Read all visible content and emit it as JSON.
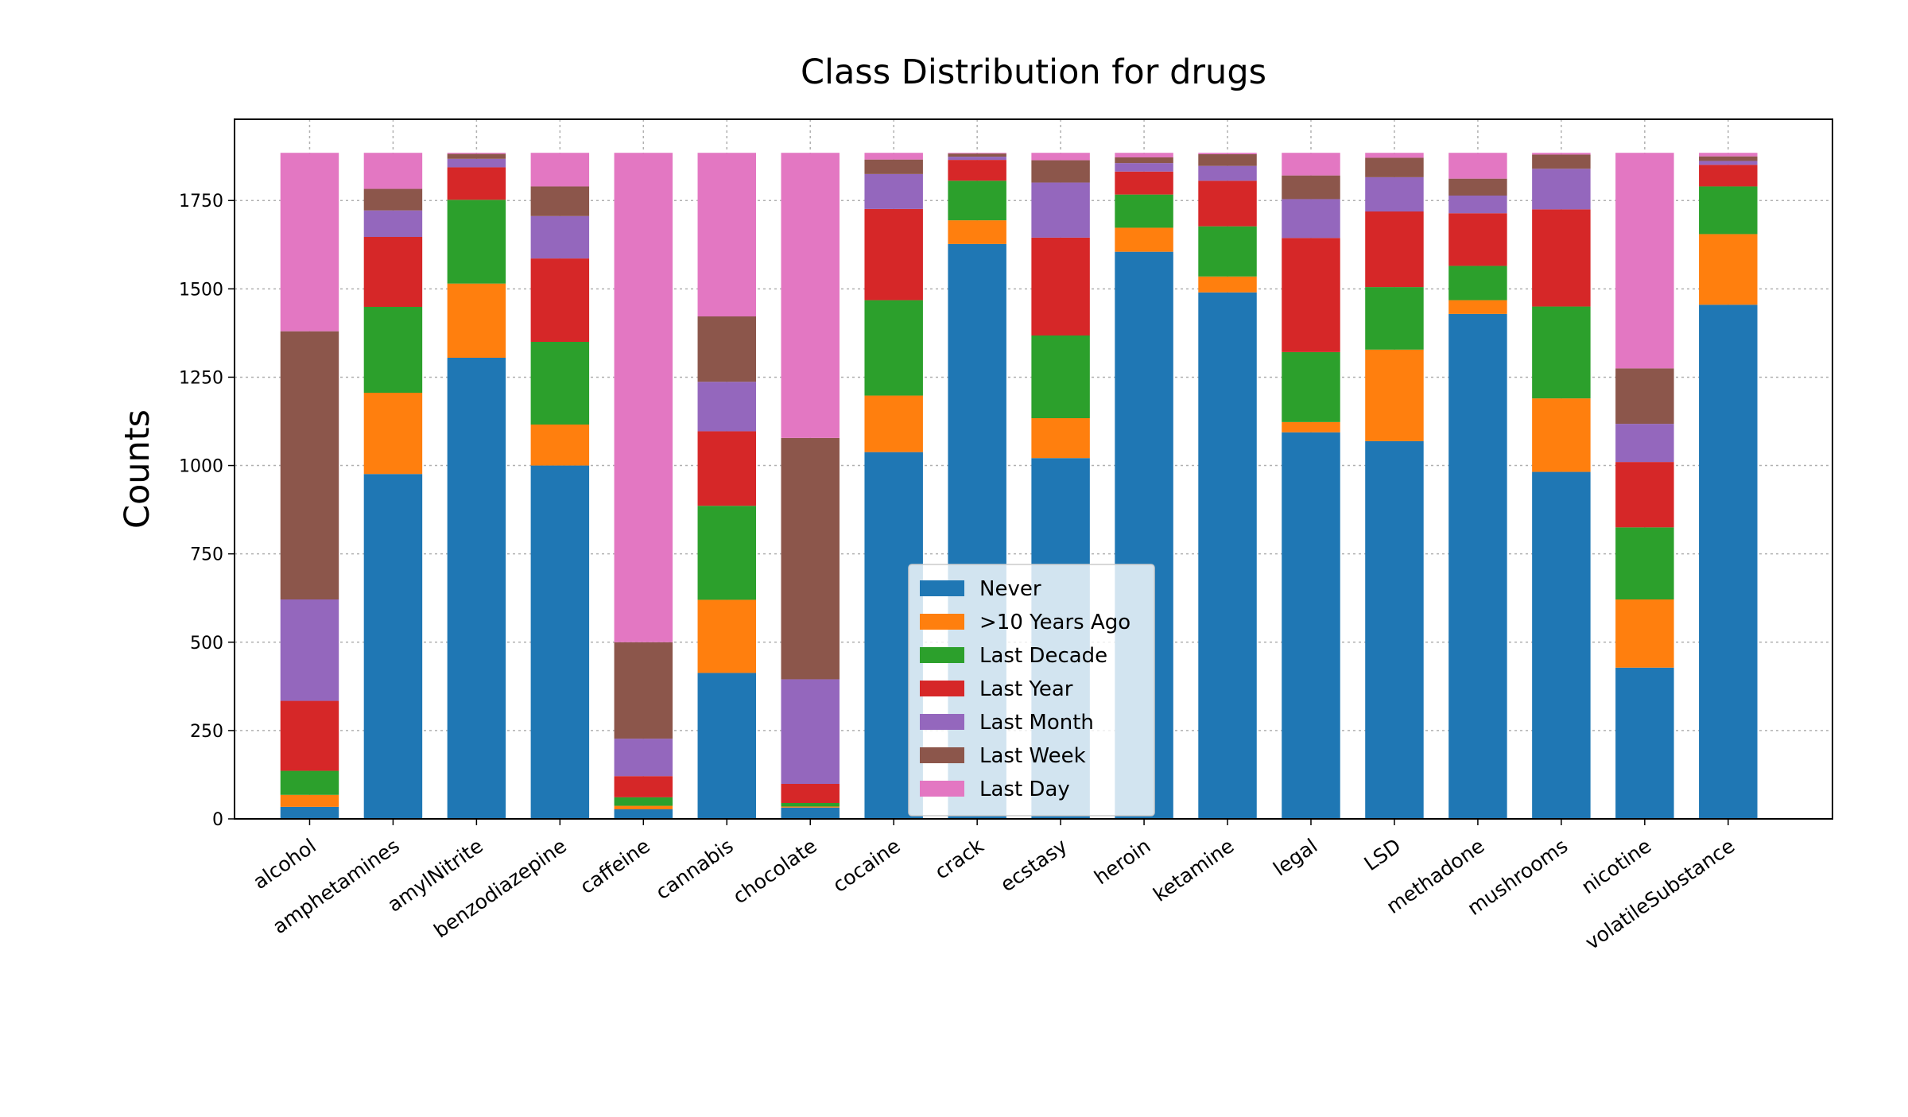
{
  "chart_data": {
    "type": "bar",
    "stacked": true,
    "title": "Class Distribution for drugs",
    "xlabel": "",
    "ylabel": "Counts",
    "ylim": [
      0,
      1980
    ],
    "yticks": [
      0,
      250,
      500,
      750,
      1000,
      1250,
      1500,
      1750
    ],
    "grid": true,
    "legend_position": "lower-center",
    "categories": [
      "alcohol",
      "amphetamines",
      "amylNitrite",
      "benzodiazepine",
      "caffeine",
      "cannabis",
      "chocolate",
      "cocaine",
      "crack",
      "ecstasy",
      "heroin",
      "ketamine",
      "legal",
      "LSD",
      "methadone",
      "mushrooms",
      "nicotine",
      "volatileSubstance"
    ],
    "series": [
      {
        "name": "Never",
        "color": "#1f77b4",
        "values": [
          34,
          976,
          1305,
          1000,
          27,
          413,
          32,
          1038,
          1627,
          1021,
          1605,
          1490,
          1094,
          1069,
          1429,
          982,
          428,
          1455
        ]
      },
      {
        "name": ">10 Years Ago",
        "color": "#ff7f0e",
        "values": [
          34,
          230,
          210,
          116,
          10,
          207,
          3,
          160,
          67,
          113,
          68,
          45,
          29,
          259,
          39,
          208,
          193,
          200
        ]
      },
      {
        "name": "Last Decade",
        "color": "#2ca02c",
        "values": [
          68,
          243,
          237,
          234,
          24,
          266,
          10,
          270,
          112,
          234,
          94,
          142,
          198,
          177,
          97,
          260,
          204,
          135
        ]
      },
      {
        "name": "Last Year",
        "color": "#d62728",
        "values": [
          198,
          198,
          92,
          236,
          60,
          211,
          54,
          258,
          59,
          277,
          65,
          129,
          323,
          214,
          149,
          275,
          185,
          61
        ]
      },
      {
        "name": "Last Month",
        "color": "#9467bd",
        "values": [
          287,
          75,
          24,
          120,
          106,
          140,
          296,
          99,
          9,
          156,
          24,
          42,
          110,
          97,
          50,
          115,
          108,
          11
        ]
      },
      {
        "name": "Last Week",
        "color": "#8c564b",
        "values": [
          759,
          61,
          14,
          84,
          273,
          185,
          683,
          41,
          9,
          63,
          16,
          33,
          67,
          55,
          48,
          40,
          157,
          13
        ]
      },
      {
        "name": "Last Day",
        "color": "#e377c2",
        "values": [
          505,
          102,
          3,
          95,
          1385,
          463,
          807,
          19,
          2,
          21,
          13,
          4,
          64,
          14,
          73,
          5,
          610,
          10
        ]
      }
    ]
  }
}
